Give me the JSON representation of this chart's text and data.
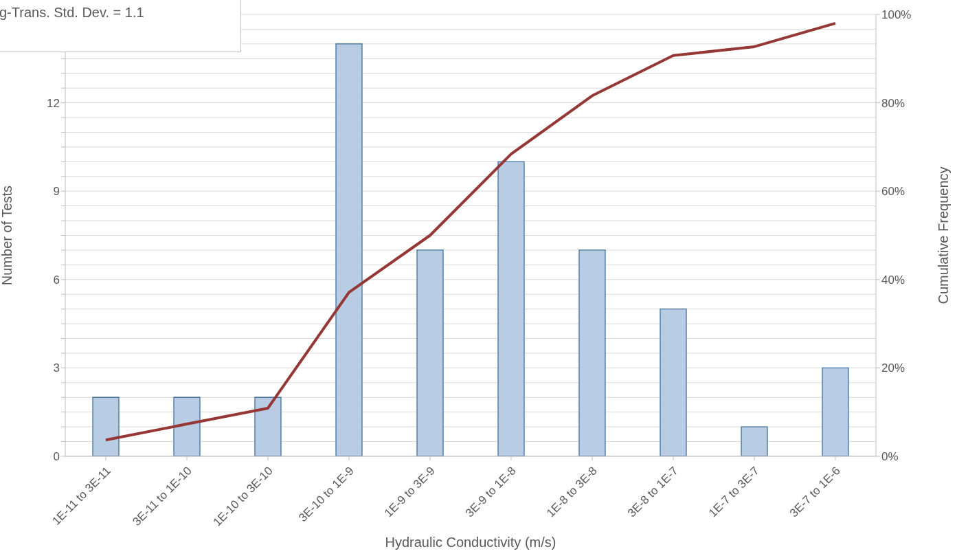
{
  "chart_data": {
    "type": "bar",
    "xlabel": "Hydraulic Conductivity (m/s)",
    "ylabel": "Number of Tests",
    "y2label": "Cumulative Frequency",
    "annotations": [
      "g-Trans. Std. Dev. = 1.1"
    ],
    "categories": [
      "1E-11 to 3E-11",
      "3E-11 to 1E-10",
      "1E-10 to 3E-10",
      "3E-10 to 1E-9",
      "1E-9 to 3E-9",
      "3E-9 to 1E-8",
      "1E-8 to 3E-8",
      "3E-8 to 1E-7",
      "1E-7 to 3E-7",
      "3E-7 to 1E-6"
    ],
    "series": [
      {
        "color": "#b8cce4",
        "values": [
          2,
          2,
          2,
          14,
          7,
          10,
          7,
          5,
          1,
          3
        ]
      },
      {
        "type": "line",
        "axis": "y2",
        "color": "#953735",
        "values": [
          3.7,
          7.3,
          10.9,
          37.1,
          50,
          68.4,
          81.6,
          90.7,
          92.7,
          98
        ]
      }
    ],
    "ylim": [
      0,
      15
    ],
    "yticks": [
      0,
      {
        "value": 0.5,
        "label": null
      },
      {
        "value": 1,
        "label": null
      },
      {
        "value": 1.5,
        "label": null
      },
      {
        "value": 2,
        "label": null
      },
      {
        "value": 2.5,
        "label": null
      },
      3,
      {
        "value": 3.5,
        "label": null
      },
      {
        "value": 4,
        "label": null
      },
      {
        "value": 4.5,
        "label": null
      },
      {
        "value": 5,
        "label": null
      },
      {
        "value": 5.5,
        "label": null
      },
      6,
      {
        "value": 6.5,
        "label": null
      },
      {
        "value": 7,
        "label": null
      },
      {
        "value": 7.5,
        "label": null
      },
      {
        "value": 8,
        "label": null
      },
      {
        "value": 8.5,
        "label": null
      },
      9,
      {
        "value": 9.5,
        "label": null
      },
      {
        "value": 10,
        "label": null
      },
      {
        "value": 10.5,
        "label": null
      },
      {
        "value": 11,
        "label": null
      },
      {
        "value": 11.5,
        "label": null
      },
      12,
      {
        "value": 12.5,
        "label": null
      },
      {
        "value": 13,
        "label": null
      },
      {
        "value": 13.5,
        "label": null
      },
      {
        "value": 14,
        "label": null
      },
      {
        "value": 14.5,
        "label": null
      },
      {
        "value": 15,
        "label": null
      }
    ],
    "y2lim": [
      0,
      100
    ],
    "y2ticks": [
      {
        "value": 0,
        "label": "0%"
      },
      {
        "value": 20,
        "label": "20%"
      },
      {
        "value": 40,
        "label": "40%"
      },
      {
        "value": 60,
        "label": "60%"
      },
      {
        "value": 80,
        "label": "80%"
      },
      {
        "value": 100,
        "label": "100%"
      }
    ],
    "grid": "y",
    "legend": false,
    "marker": "none",
    "line_style": "solid"
  }
}
